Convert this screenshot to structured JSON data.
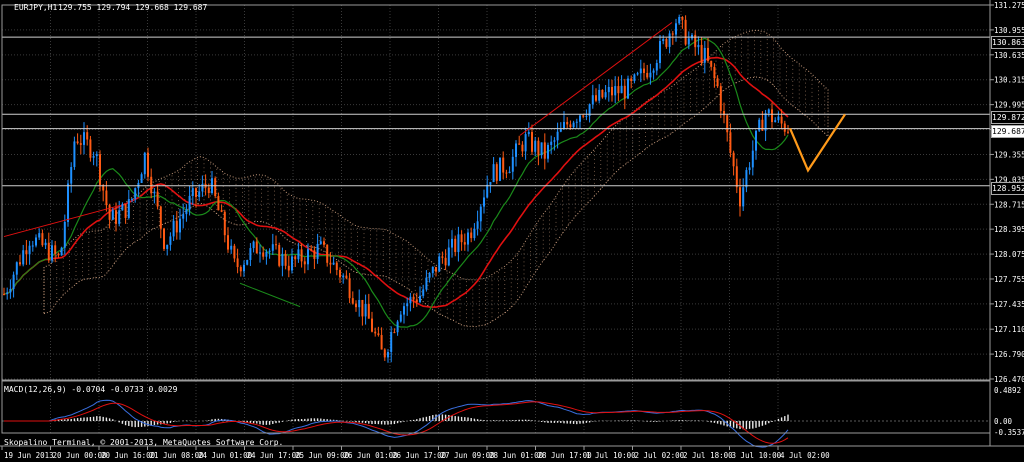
{
  "header": {
    "symbol": "EURJPY,H1",
    "ohlc": "129.755 129.794 129.668 129.687"
  },
  "main_axis": {
    "ticks": [
      "131.275",
      "130.955",
      "130.635",
      "130.315",
      "129.995",
      "129.675",
      "129.355",
      "129.035",
      "128.715",
      "128.395",
      "128.075",
      "127.755",
      "127.435",
      "127.110",
      "126.790",
      "126.470"
    ]
  },
  "price_tags": [
    "130.863",
    "129.872",
    "129.687",
    "128.952"
  ],
  "indicator": {
    "name": "MACD(12,26,9) -0.0704 -0.0733 0.0029",
    "ticks": [
      "0.4892",
      "0.00",
      "-0.3537"
    ]
  },
  "copyright": "Skopalino Terminal, © 2001-2013, MetaQuotes Software Corp.",
  "time_axis": [
    "19 Jun 2013",
    "20 Jun 00:00",
    "20 Jun 16:00",
    "21 Jun 08:00",
    "24 Jun 01:00",
    "24 Jun 17:00",
    "25 Jun 09:00",
    "26 Jun 01:00",
    "26 Jun 17:00",
    "27 Jun 09:00",
    "28 Jun 01:00",
    "28 Jun 17:00",
    "1 Jul 10:00",
    "2 Jul 02:00",
    "2 Jul 18:00",
    "3 Jul 10:00",
    "4 Jul 02:00"
  ],
  "colors": {
    "bull": "#1e90ff",
    "bear": "#ff5a14",
    "ma_fast": "#e01010",
    "ma_slow": "#1a8a1a",
    "cloud_a": "#d8a887",
    "cloud_b": "#e6e6e6",
    "projection": "#ff9a1a",
    "grid": "#3a3a3a"
  }
}
